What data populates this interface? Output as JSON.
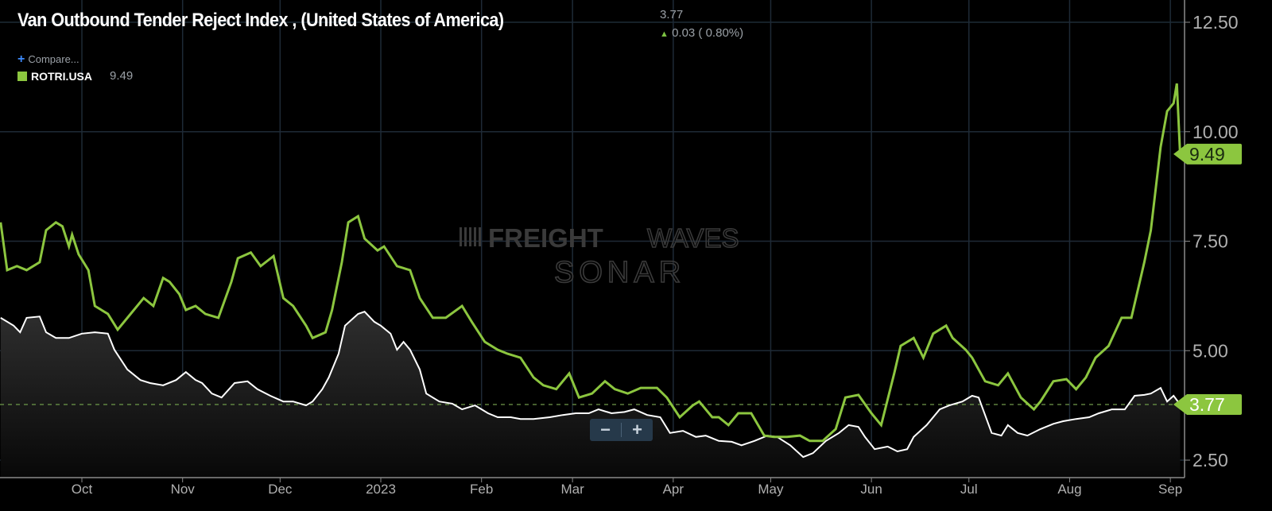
{
  "header": {
    "title": "Van Outbound Tender Reject Index , (United States of America)",
    "last_value": "3.77",
    "change": "0.03 ( 0.80%)",
    "change_direction": "up",
    "compare_label": "Compare...",
    "compare_icon": "plus-icon"
  },
  "legend": {
    "series_name": "ROTRI.USA",
    "series_value": "9.49",
    "series_color": "#8cc63f"
  },
  "watermark": {
    "line1_bold": "FREIGHT",
    "line1_light": "WAVES",
    "line2": "SONAR"
  },
  "zoom_controls": {
    "minus": "−",
    "plus": "+"
  },
  "colors": {
    "main_line": "#ffffff",
    "compare_line": "#8cc63f",
    "label_bg": "#8cc63f",
    "grid": "#1e2a36",
    "background": "#000000"
  },
  "chart_data": {
    "type": "line",
    "title": "Van Outbound Tender Reject Index , (United States of America)",
    "y_axis_position": "right",
    "ylim": [
      2.0,
      12.7
    ],
    "y_ticks": [
      "12.50",
      "10.00",
      "7.50",
      "5.00",
      "2.50"
    ],
    "x_ticks": [
      {
        "date": "2022-10-01",
        "label": "Oct"
      },
      {
        "date": "2022-11-01",
        "label": "Nov"
      },
      {
        "date": "2022-12-01",
        "label": "Dec"
      },
      {
        "date": "2023-01-01",
        "label": "2023"
      },
      {
        "date": "2023-02-01",
        "label": "Feb"
      },
      {
        "date": "2023-03-01",
        "label": "Mar"
      },
      {
        "date": "2023-04-01",
        "label": "Apr"
      },
      {
        "date": "2023-05-01",
        "label": "May"
      },
      {
        "date": "2023-06-01",
        "label": "Jun"
      },
      {
        "date": "2023-07-01",
        "label": "Jul"
      },
      {
        "date": "2023-08-01",
        "label": "Aug"
      },
      {
        "date": "2023-09-01",
        "label": "Sep"
      }
    ],
    "grid": true,
    "current_value_line": 3.77,
    "series": [
      {
        "name": "Van Outbound Tender Reject Index",
        "style": "area",
        "color": "#ffffff",
        "last_label": "3.77",
        "points": [
          [
            "2022-09-06",
            5.75
          ],
          [
            "2022-09-10",
            5.57
          ],
          [
            "2022-09-12",
            5.42
          ],
          [
            "2022-09-14",
            5.75
          ],
          [
            "2022-09-18",
            5.78
          ],
          [
            "2022-09-20",
            5.42
          ],
          [
            "2022-09-23",
            5.29
          ],
          [
            "2022-09-27",
            5.29
          ],
          [
            "2022-10-01",
            5.39
          ],
          [
            "2022-10-05",
            5.42
          ],
          [
            "2022-10-09",
            5.39
          ],
          [
            "2022-10-11",
            5.02
          ],
          [
            "2022-10-15",
            4.57
          ],
          [
            "2022-10-19",
            4.33
          ],
          [
            "2022-10-22",
            4.26
          ],
          [
            "2022-10-26",
            4.21
          ],
          [
            "2022-10-30",
            4.33
          ],
          [
            "2022-11-02",
            4.51
          ],
          [
            "2022-11-05",
            4.33
          ],
          [
            "2022-11-07",
            4.26
          ],
          [
            "2022-11-10",
            4.02
          ],
          [
            "2022-11-13",
            3.93
          ],
          [
            "2022-11-17",
            4.26
          ],
          [
            "2022-11-21",
            4.3
          ],
          [
            "2022-11-24",
            4.12
          ],
          [
            "2022-11-28",
            3.97
          ],
          [
            "2022-12-02",
            3.84
          ],
          [
            "2022-12-05",
            3.84
          ],
          [
            "2022-12-09",
            3.75
          ],
          [
            "2022-12-11",
            3.84
          ],
          [
            "2022-12-14",
            4.12
          ],
          [
            "2022-12-16",
            4.39
          ],
          [
            "2022-12-19",
            4.93
          ],
          [
            "2022-12-21",
            5.57
          ],
          [
            "2022-12-25",
            5.84
          ],
          [
            "2022-12-27",
            5.89
          ],
          [
            "2022-12-30",
            5.66
          ],
          [
            "2023-01-01",
            5.57
          ],
          [
            "2023-01-04",
            5.39
          ],
          [
            "2023-01-06",
            5.02
          ],
          [
            "2023-01-08",
            5.2
          ],
          [
            "2023-01-10",
            5.02
          ],
          [
            "2023-01-13",
            4.57
          ],
          [
            "2023-01-15",
            4.02
          ],
          [
            "2023-01-19",
            3.84
          ],
          [
            "2023-01-23",
            3.79
          ],
          [
            "2023-01-26",
            3.66
          ],
          [
            "2023-01-30",
            3.75
          ],
          [
            "2023-02-03",
            3.57
          ],
          [
            "2023-02-06",
            3.48
          ],
          [
            "2023-02-10",
            3.48
          ],
          [
            "2023-02-13",
            3.44
          ],
          [
            "2023-02-17",
            3.44
          ],
          [
            "2023-02-22",
            3.48
          ],
          [
            "2023-02-26",
            3.53
          ],
          [
            "2023-03-02",
            3.57
          ],
          [
            "2023-03-06",
            3.57
          ],
          [
            "2023-03-09",
            3.66
          ],
          [
            "2023-03-13",
            3.57
          ],
          [
            "2023-03-17",
            3.6
          ],
          [
            "2023-03-20",
            3.66
          ],
          [
            "2023-03-24",
            3.53
          ],
          [
            "2023-03-28",
            3.48
          ],
          [
            "2023-03-31",
            3.12
          ],
          [
            "2023-04-04",
            3.17
          ],
          [
            "2023-04-08",
            3.03
          ],
          [
            "2023-04-11",
            3.06
          ],
          [
            "2023-04-15",
            2.94
          ],
          [
            "2023-04-19",
            2.92
          ],
          [
            "2023-04-22",
            2.84
          ],
          [
            "2023-04-26",
            2.94
          ],
          [
            "2023-04-30",
            3.06
          ],
          [
            "2023-05-03",
            3.03
          ],
          [
            "2023-05-07",
            2.84
          ],
          [
            "2023-05-11",
            2.57
          ],
          [
            "2023-05-14",
            2.66
          ],
          [
            "2023-05-18",
            2.94
          ],
          [
            "2023-05-22",
            3.12
          ],
          [
            "2023-05-25",
            3.3
          ],
          [
            "2023-05-28",
            3.26
          ],
          [
            "2023-05-30",
            3.03
          ],
          [
            "2023-06-02",
            2.75
          ],
          [
            "2023-06-06",
            2.81
          ],
          [
            "2023-06-09",
            2.7
          ],
          [
            "2023-06-12",
            2.75
          ],
          [
            "2023-06-14",
            3.03
          ],
          [
            "2023-06-18",
            3.3
          ],
          [
            "2023-06-22",
            3.66
          ],
          [
            "2023-06-25",
            3.75
          ],
          [
            "2023-06-29",
            3.84
          ],
          [
            "2023-07-02",
            3.97
          ],
          [
            "2023-07-04",
            3.93
          ],
          [
            "2023-07-08",
            3.12
          ],
          [
            "2023-07-11",
            3.06
          ],
          [
            "2023-07-13",
            3.3
          ],
          [
            "2023-07-16",
            3.12
          ],
          [
            "2023-07-19",
            3.06
          ],
          [
            "2023-07-23",
            3.21
          ],
          [
            "2023-07-27",
            3.33
          ],
          [
            "2023-07-30",
            3.39
          ],
          [
            "2023-08-03",
            3.44
          ],
          [
            "2023-08-07",
            3.48
          ],
          [
            "2023-08-10",
            3.57
          ],
          [
            "2023-08-14",
            3.66
          ],
          [
            "2023-08-18",
            3.66
          ],
          [
            "2023-08-21",
            3.97
          ],
          [
            "2023-08-24",
            3.99
          ],
          [
            "2023-08-26",
            4.02
          ],
          [
            "2023-08-29",
            4.15
          ],
          [
            "2023-08-31",
            3.84
          ],
          [
            "2023-09-02",
            3.97
          ],
          [
            "2023-09-04",
            3.77
          ]
        ]
      },
      {
        "name": "ROTRI.USA",
        "style": "line",
        "color": "#8cc63f",
        "last_label": "9.49",
        "points": [
          [
            "2022-09-06",
            7.93
          ],
          [
            "2022-09-08",
            6.84
          ],
          [
            "2022-09-11",
            6.93
          ],
          [
            "2022-09-14",
            6.84
          ],
          [
            "2022-09-18",
            7.02
          ],
          [
            "2022-09-20",
            7.75
          ],
          [
            "2022-09-23",
            7.93
          ],
          [
            "2022-09-25",
            7.84
          ],
          [
            "2022-09-27",
            7.38
          ],
          [
            "2022-09-28",
            7.65
          ],
          [
            "2022-09-30",
            7.2
          ],
          [
            "2022-10-03",
            6.84
          ],
          [
            "2022-10-05",
            6.02
          ],
          [
            "2022-10-09",
            5.84
          ],
          [
            "2022-10-12",
            5.48
          ],
          [
            "2022-10-16",
            5.84
          ],
          [
            "2022-10-20",
            6.2
          ],
          [
            "2022-10-23",
            6.02
          ],
          [
            "2022-10-26",
            6.66
          ],
          [
            "2022-10-28",
            6.57
          ],
          [
            "2022-10-31",
            6.29
          ],
          [
            "2022-11-02",
            5.93
          ],
          [
            "2022-11-05",
            6.02
          ],
          [
            "2022-11-08",
            5.84
          ],
          [
            "2022-11-12",
            5.75
          ],
          [
            "2022-11-16",
            6.57
          ],
          [
            "2022-11-18",
            7.11
          ],
          [
            "2022-11-22",
            7.24
          ],
          [
            "2022-11-25",
            6.93
          ],
          [
            "2022-11-29",
            7.16
          ],
          [
            "2022-12-02",
            6.2
          ],
          [
            "2022-12-05",
            6.02
          ],
          [
            "2022-12-09",
            5.57
          ],
          [
            "2022-12-11",
            5.29
          ],
          [
            "2022-12-15",
            5.42
          ],
          [
            "2022-12-17",
            5.93
          ],
          [
            "2022-12-20",
            7.02
          ],
          [
            "2022-12-22",
            7.93
          ],
          [
            "2022-12-25",
            8.07
          ],
          [
            "2022-12-27",
            7.56
          ],
          [
            "2022-12-31",
            7.29
          ],
          [
            "2023-01-02",
            7.38
          ],
          [
            "2023-01-06",
            6.93
          ],
          [
            "2023-01-10",
            6.84
          ],
          [
            "2023-01-13",
            6.2
          ],
          [
            "2023-01-17",
            5.75
          ],
          [
            "2023-01-21",
            5.75
          ],
          [
            "2023-01-26",
            6.02
          ],
          [
            "2023-01-29",
            5.66
          ],
          [
            "2023-02-02",
            5.2
          ],
          [
            "2023-02-06",
            5.02
          ],
          [
            "2023-02-09",
            4.93
          ],
          [
            "2023-02-13",
            4.84
          ],
          [
            "2023-02-17",
            4.39
          ],
          [
            "2023-02-20",
            4.21
          ],
          [
            "2023-02-24",
            4.12
          ],
          [
            "2023-02-28",
            4.48
          ],
          [
            "2023-03-03",
            3.93
          ],
          [
            "2023-03-07",
            4.02
          ],
          [
            "2023-03-11",
            4.3
          ],
          [
            "2023-03-14",
            4.12
          ],
          [
            "2023-03-18",
            4.02
          ],
          [
            "2023-03-22",
            4.15
          ],
          [
            "2023-03-27",
            4.15
          ],
          [
            "2023-03-30",
            3.93
          ],
          [
            "2023-04-03",
            3.48
          ],
          [
            "2023-04-07",
            3.75
          ],
          [
            "2023-04-09",
            3.84
          ],
          [
            "2023-04-13",
            3.48
          ],
          [
            "2023-04-15",
            3.48
          ],
          [
            "2023-04-18",
            3.3
          ],
          [
            "2023-04-21",
            3.57
          ],
          [
            "2023-04-25",
            3.57
          ],
          [
            "2023-04-29",
            3.06
          ],
          [
            "2023-05-02",
            3.03
          ],
          [
            "2023-05-06",
            3.03
          ],
          [
            "2023-05-10",
            3.06
          ],
          [
            "2023-05-13",
            2.94
          ],
          [
            "2023-05-17",
            2.94
          ],
          [
            "2023-05-21",
            3.21
          ],
          [
            "2023-05-24",
            3.93
          ],
          [
            "2023-05-28",
            3.99
          ],
          [
            "2023-06-01",
            3.57
          ],
          [
            "2023-06-04",
            3.3
          ],
          [
            "2023-06-08",
            4.48
          ],
          [
            "2023-06-10",
            5.11
          ],
          [
            "2023-06-14",
            5.29
          ],
          [
            "2023-06-17",
            4.84
          ],
          [
            "2023-06-20",
            5.39
          ],
          [
            "2023-06-24",
            5.57
          ],
          [
            "2023-06-26",
            5.29
          ],
          [
            "2023-06-30",
            5.02
          ],
          [
            "2023-07-02",
            4.84
          ],
          [
            "2023-07-06",
            4.3
          ],
          [
            "2023-07-10",
            4.21
          ],
          [
            "2023-07-13",
            4.48
          ],
          [
            "2023-07-17",
            3.93
          ],
          [
            "2023-07-21",
            3.66
          ],
          [
            "2023-07-23",
            3.84
          ],
          [
            "2023-07-27",
            4.3
          ],
          [
            "2023-07-31",
            4.35
          ],
          [
            "2023-08-03",
            4.12
          ],
          [
            "2023-08-06",
            4.39
          ],
          [
            "2023-08-09",
            4.84
          ],
          [
            "2023-08-13",
            5.11
          ],
          [
            "2023-08-17",
            5.75
          ],
          [
            "2023-08-20",
            5.75
          ],
          [
            "2023-08-24",
            7.02
          ],
          [
            "2023-08-26",
            7.75
          ],
          [
            "2023-08-29",
            9.65
          ],
          [
            "2023-08-31",
            10.47
          ],
          [
            "2023-09-02",
            10.65
          ],
          [
            "2023-09-03",
            11.1
          ],
          [
            "2023-09-04",
            9.49
          ]
        ]
      }
    ]
  }
}
